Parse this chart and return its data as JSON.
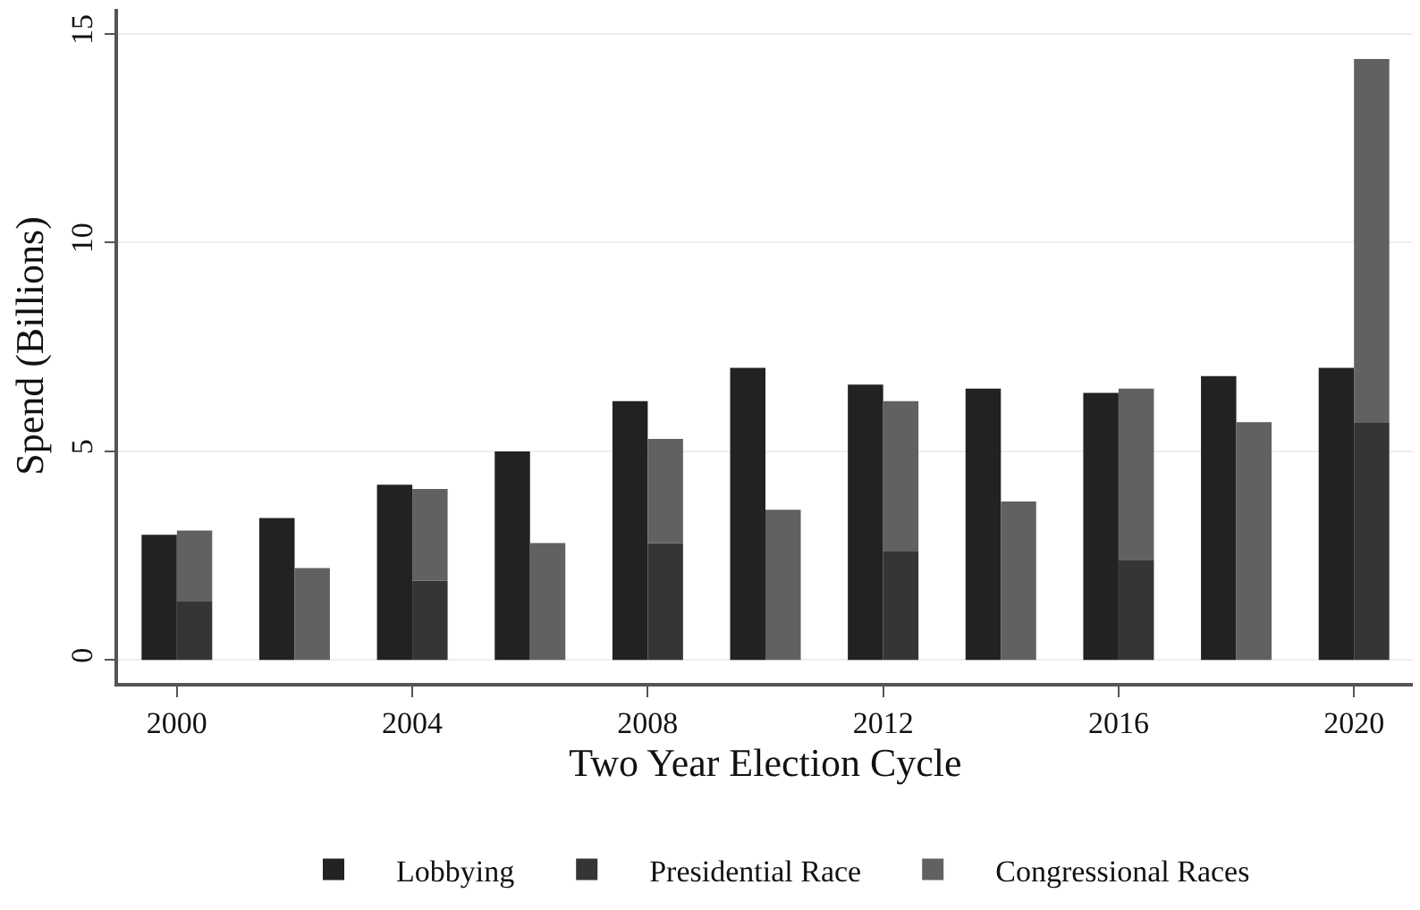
{
  "chart_data": {
    "type": "bar",
    "xlabel": "Two Year Election Cycle",
    "ylabel": "Spend (Billions)",
    "x": [
      1999.7,
      2000.3,
      2001.7,
      2002.3,
      2003.7,
      2004.3,
      2005.7,
      2006.3,
      2007.7,
      2008.3,
      2009.7,
      2010.3,
      2011.7,
      2012.3,
      2013.7,
      2014.3,
      2015.7,
      2016.3,
      2017.7,
      2018.3,
      2019.7,
      2020.3
    ],
    "series": [
      {
        "name": "Lobbying",
        "color": "#222222",
        "values": [
          3.0,
          null,
          3.4,
          null,
          4.2,
          null,
          5.0,
          null,
          6.2,
          null,
          7.0,
          null,
          6.6,
          null,
          6.5,
          null,
          6.4,
          null,
          6.8,
          null,
          7.0,
          null
        ]
      },
      {
        "name": "Presidential Race",
        "color": "#353535",
        "values": [
          null,
          1.4,
          null,
          null,
          null,
          1.9,
          null,
          null,
          null,
          2.8,
          null,
          null,
          null,
          2.6,
          null,
          null,
          null,
          2.4,
          null,
          null,
          null,
          5.7
        ]
      },
      {
        "name": "Congressional Races",
        "color": "#616161",
        "values": [
          null,
          1.7,
          null,
          2.2,
          null,
          2.2,
          null,
          2.8,
          null,
          2.5,
          null,
          3.6,
          null,
          3.6,
          null,
          3.8,
          null,
          4.1,
          null,
          5.7,
          null,
          8.7
        ]
      }
    ],
    "stacked": true,
    "xlim": [
      1999,
      2021
    ],
    "xticks": [
      2000,
      2004,
      2008,
      2012,
      2016,
      2020
    ],
    "ylim": [
      -0.55,
      15.6
    ],
    "yticks": [
      0,
      5,
      10,
      15
    ],
    "grid": "y",
    "legend": "bottom"
  }
}
